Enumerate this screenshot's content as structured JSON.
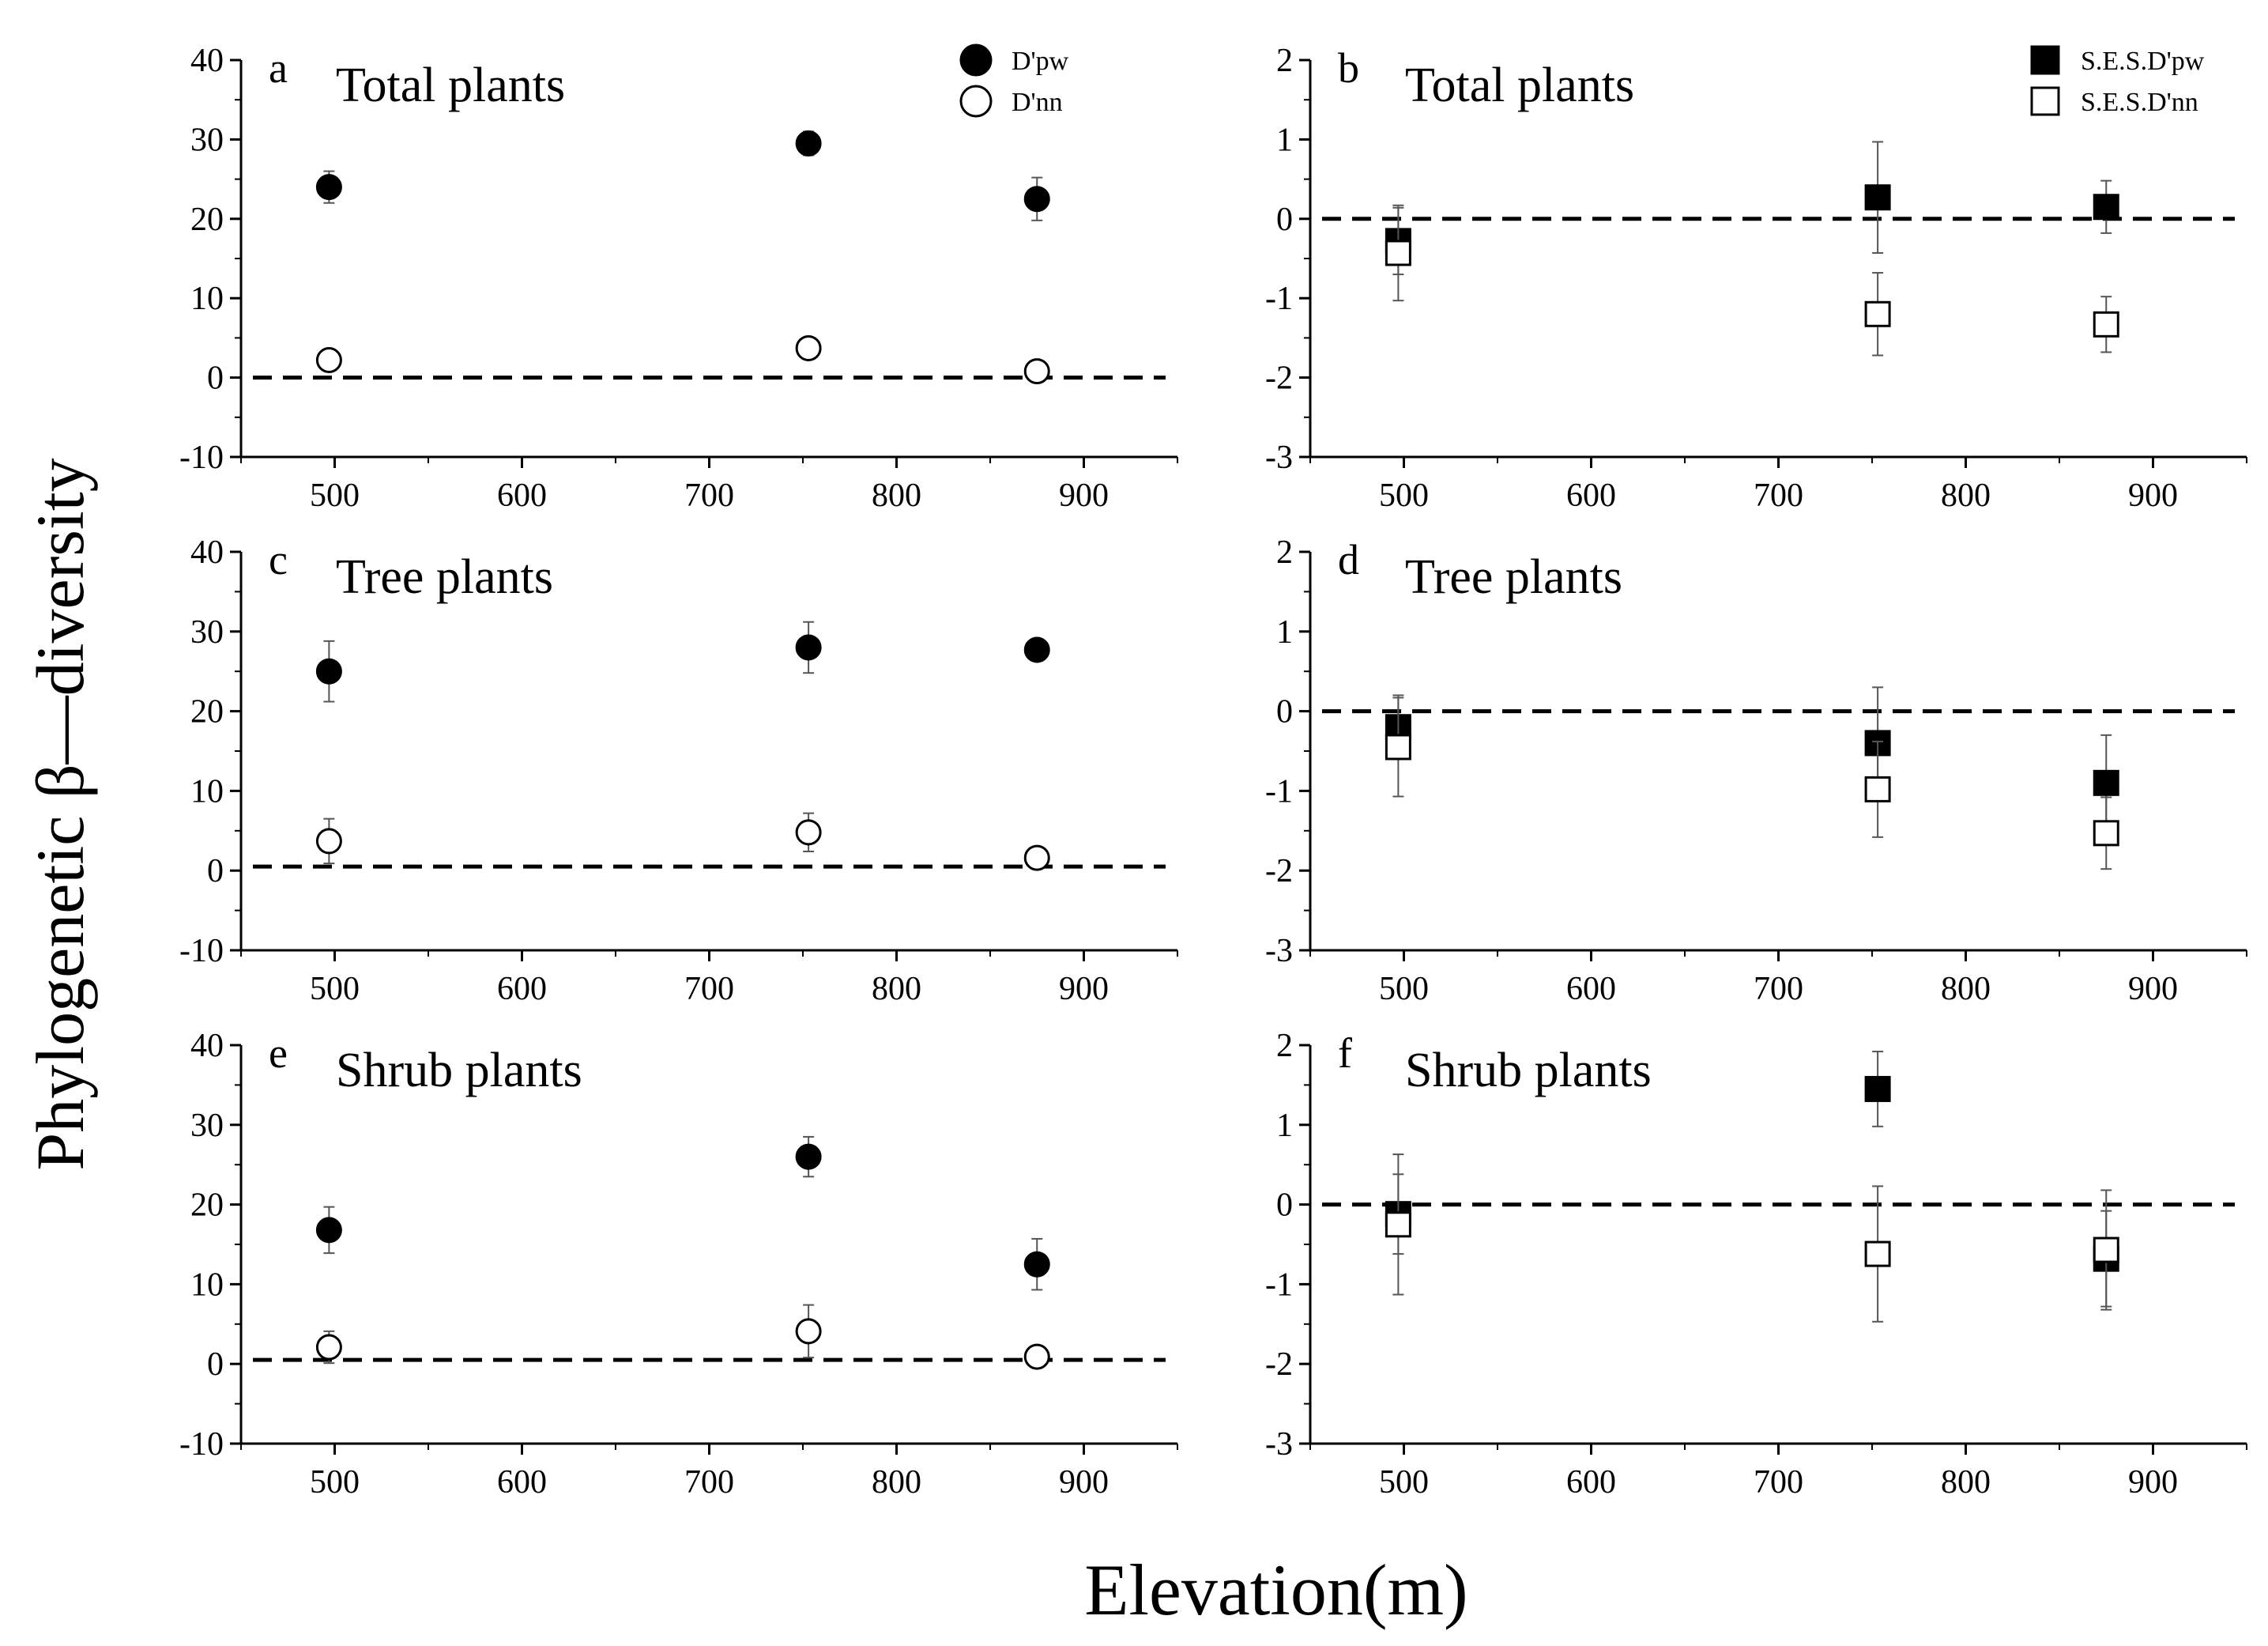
{
  "figure": {
    "ylabel": "Phylogenetic β—diversity",
    "xlabel": "Elevation(m)"
  },
  "chart_data": [
    {
      "type": "scatter",
      "letter": "a",
      "title": "Total plants",
      "ylim": [
        -10,
        40
      ],
      "xlim": [
        450,
        950
      ],
      "yticks": [
        "-10",
        "0",
        "10",
        "20",
        "30",
        "40"
      ],
      "xticks": [
        "500",
        "600",
        "700",
        "800",
        "900"
      ],
      "reference_line": 0,
      "legend": true,
      "series": [
        {
          "name": "D'pw",
          "marker": "filled-circle",
          "x": [
            497,
            753,
            875
          ],
          "y": [
            24,
            29.5,
            22.5
          ],
          "err": [
            2.0,
            1.5,
            2.7
          ]
        },
        {
          "name": "D'nn",
          "marker": "open-circle",
          "x": [
            497,
            753,
            875
          ],
          "y": [
            2.2,
            3.7,
            0.8
          ],
          "err": [
            0.7,
            0.5,
            0.6
          ]
        }
      ]
    },
    {
      "type": "scatter",
      "letter": "b",
      "title": "Total plants",
      "ylim": [
        -3,
        2
      ],
      "xlim": [
        450,
        950
      ],
      "yticks": [
        "-3",
        "-2",
        "-1",
        "0",
        "1",
        "2"
      ],
      "xticks": [
        "500",
        "600",
        "700",
        "800",
        "900"
      ],
      "reference_line": 0,
      "legend": true,
      "series": [
        {
          "name": "S.E.S.D'pw",
          "marker": "filled-square",
          "x": [
            497,
            753,
            875
          ],
          "y": [
            -0.28,
            0.27,
            0.15
          ],
          "err": [
            0.42,
            0.7,
            0.33
          ]
        },
        {
          "name": "S.E.S.D'nn",
          "marker": "open-square",
          "x": [
            497,
            753,
            875
          ],
          "y": [
            -0.43,
            -1.2,
            -1.33
          ],
          "err": [
            0.6,
            0.52,
            0.35
          ]
        }
      ]
    },
    {
      "type": "scatter",
      "letter": "c",
      "title": "Tree plants",
      "ylim": [
        -10,
        40
      ],
      "xlim": [
        450,
        950
      ],
      "yticks": [
        "-10",
        "0",
        "10",
        "20",
        "30",
        "40"
      ],
      "xticks": [
        "500",
        "600",
        "700",
        "800",
        "900"
      ],
      "reference_line": 0.5,
      "legend": false,
      "series": [
        {
          "name": "D'pw",
          "marker": "filled-circle",
          "x": [
            497,
            753,
            875
          ],
          "y": [
            25,
            28,
            27.7
          ],
          "err": [
            3.8,
            3.2,
            0.6
          ]
        },
        {
          "name": "D'nn",
          "marker": "open-circle",
          "x": [
            497,
            753,
            875
          ],
          "y": [
            3.7,
            4.8,
            1.6
          ],
          "err": [
            2.8,
            2.4,
            0.7
          ]
        }
      ]
    },
    {
      "type": "scatter",
      "letter": "d",
      "title": "Tree plants",
      "ylim": [
        -3,
        2
      ],
      "xlim": [
        450,
        950
      ],
      "yticks": [
        "-3",
        "-2",
        "-1",
        "0",
        "1",
        "2"
      ],
      "xticks": [
        "500",
        "600",
        "700",
        "800",
        "900"
      ],
      "reference_line": 0,
      "legend": false,
      "series": [
        {
          "name": "S.E.S.D'pw",
          "marker": "filled-square",
          "x": [
            497,
            753,
            875
          ],
          "y": [
            -0.2,
            -0.4,
            -0.9
          ],
          "err": [
            0.4,
            0.7,
            0.6
          ]
        },
        {
          "name": "S.E.S.D'nn",
          "marker": "open-square",
          "x": [
            497,
            753,
            875
          ],
          "y": [
            -0.45,
            -0.98,
            -1.53
          ],
          "err": [
            0.62,
            0.6,
            0.45
          ]
        }
      ]
    },
    {
      "type": "scatter",
      "letter": "e",
      "title": "Shrub plants",
      "ylim": [
        -10,
        40
      ],
      "xlim": [
        450,
        950
      ],
      "yticks": [
        "-10",
        "0",
        "10",
        "20",
        "30",
        "40"
      ],
      "xticks": [
        "500",
        "600",
        "700",
        "800",
        "900"
      ],
      "reference_line": 0.5,
      "legend": false,
      "series": [
        {
          "name": "D'pw",
          "marker": "filled-circle",
          "x": [
            497,
            753,
            875
          ],
          "y": [
            16.8,
            26,
            12.5
          ],
          "err": [
            2.9,
            2.5,
            3.2
          ]
        },
        {
          "name": "D'nn",
          "marker": "open-circle",
          "x": [
            497,
            753,
            875
          ],
          "y": [
            2.1,
            4.1,
            0.9
          ],
          "err": [
            2.0,
            3.3,
            0.6
          ]
        }
      ]
    },
    {
      "type": "scatter",
      "letter": "f",
      "title": "Shrub plants",
      "ylim": [
        -3,
        2
      ],
      "xlim": [
        450,
        950
      ],
      "yticks": [
        "-3",
        "-2",
        "-1",
        "0",
        "1",
        "2"
      ],
      "xticks": [
        "500",
        "600",
        "700",
        "800",
        "900"
      ],
      "reference_line": 0,
      "legend": false,
      "series": [
        {
          "name": "S.E.S.D'pw",
          "marker": "filled-square",
          "x": [
            497,
            753,
            875
          ],
          "y": [
            -0.12,
            1.45,
            -0.68
          ],
          "err": [
            0.5,
            0.47,
            0.6
          ]
        },
        {
          "name": "S.E.S.D'nn",
          "marker": "open-square",
          "x": [
            497,
            753,
            875
          ],
          "y": [
            -0.25,
            -0.62,
            -0.57
          ],
          "err": [
            0.88,
            0.85,
            0.75
          ]
        }
      ]
    }
  ]
}
